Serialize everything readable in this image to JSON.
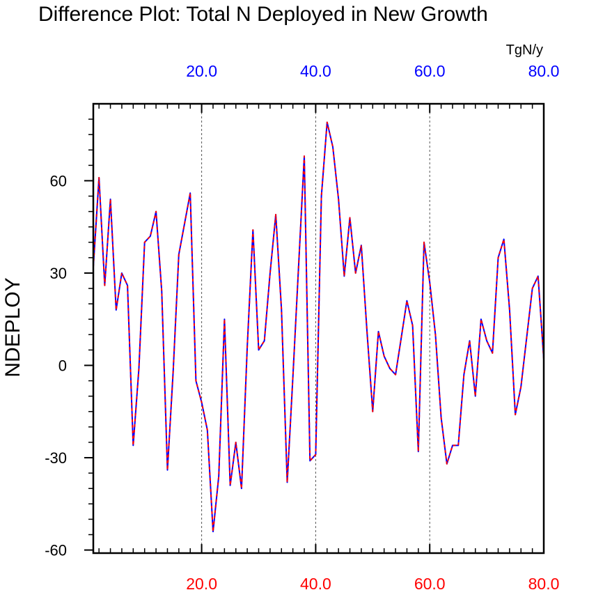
{
  "chart_data": {
    "type": "line",
    "title": "Difference Plot: Total N Deployed in New Growth",
    "units_label": "TgN/y",
    "ylabel": "NDEPLOY",
    "xlabel": "",
    "xlim": [
      1,
      80
    ],
    "ylim": [
      -61,
      85
    ],
    "y_ticks": [
      -60,
      -30,
      0,
      30,
      60
    ],
    "y_tick_labels": [
      "-60",
      "-30",
      "0",
      "30",
      "60"
    ],
    "y_minor_step": 5,
    "x_ticks": [
      20,
      40,
      60,
      80
    ],
    "x_tick_labels": [
      "20.0",
      "40.0",
      "60.0",
      "80.0"
    ],
    "x_minor_step": 2,
    "top_axis_color": "#0000ff",
    "bottom_axis_color": "#ff0000",
    "grid": "dashed vertical at major x ticks",
    "series": [
      {
        "name": "series-blue-solid",
        "color": "#0000ff",
        "style": "solid",
        "x": [
          1,
          2,
          3,
          4,
          5,
          6,
          7,
          8,
          9,
          10,
          11,
          12,
          13,
          14,
          15,
          16,
          17,
          18,
          19,
          20,
          21,
          22,
          23,
          24,
          25,
          26,
          27,
          28,
          29,
          30,
          31,
          32,
          33,
          34,
          35,
          36,
          37,
          38,
          39,
          40,
          41,
          42,
          43,
          44,
          45,
          46,
          47,
          48,
          49,
          50,
          51,
          52,
          53,
          54,
          55,
          56,
          57,
          58,
          59,
          60,
          61,
          62,
          63,
          64,
          65,
          66,
          67,
          68,
          69,
          70,
          71,
          72,
          73,
          74,
          75,
          76,
          77,
          78,
          79,
          80
        ],
        "y": [
          32,
          61,
          26,
          54,
          18,
          30,
          26,
          -26,
          -1,
          40,
          42,
          50,
          24,
          -34,
          -2,
          36,
          46,
          56,
          -5,
          -12,
          -21,
          -54,
          -36,
          15,
          -39,
          -25,
          -40,
          6,
          44,
          5,
          8,
          30,
          49,
          18,
          -38,
          -4,
          32,
          68,
          -31,
          -29,
          55,
          79,
          71,
          54,
          29,
          48,
          30,
          39,
          11,
          -15,
          11,
          3,
          -1,
          -3,
          9,
          21,
          13,
          -28,
          40,
          27,
          10,
          -17,
          -32,
          -26,
          -26,
          -3,
          8,
          -10,
          15,
          8,
          4,
          35,
          41,
          18,
          -16,
          -7,
          9,
          25,
          29,
          2
        ]
      },
      {
        "name": "series-red-dashed",
        "color": "#ff0000",
        "style": "dashed",
        "x": [
          1,
          2,
          3,
          4,
          5,
          6,
          7,
          8,
          9,
          10,
          11,
          12,
          13,
          14,
          15,
          16,
          17,
          18,
          19,
          20,
          21,
          22,
          23,
          24,
          25,
          26,
          27,
          28,
          29,
          30,
          31,
          32,
          33,
          34,
          35,
          36,
          37,
          38,
          39,
          40,
          41,
          42,
          43,
          44,
          45,
          46,
          47,
          48,
          49,
          50,
          51,
          52,
          53,
          54,
          55,
          56,
          57,
          58,
          59,
          60,
          61,
          62,
          63,
          64,
          65,
          66,
          67,
          68,
          69,
          70,
          71,
          72,
          73,
          74,
          75,
          76,
          77,
          78,
          79,
          80
        ],
        "y": [
          32,
          61,
          26,
          54,
          18,
          30,
          26,
          -26,
          -1,
          40,
          42,
          50,
          24,
          -34,
          -2,
          36,
          46,
          56,
          -5,
          -12,
          -21,
          -54,
          -36,
          15,
          -39,
          -25,
          -40,
          6,
          44,
          5,
          8,
          30,
          49,
          18,
          -38,
          -4,
          32,
          68,
          -31,
          -29,
          55,
          79,
          71,
          54,
          29,
          48,
          30,
          39,
          11,
          -15,
          11,
          3,
          -1,
          -3,
          9,
          21,
          13,
          -28,
          40,
          27,
          10,
          -17,
          -32,
          -26,
          -26,
          -3,
          8,
          -10,
          15,
          8,
          4,
          35,
          41,
          18,
          -16,
          -7,
          9,
          25,
          29,
          2
        ]
      }
    ]
  }
}
